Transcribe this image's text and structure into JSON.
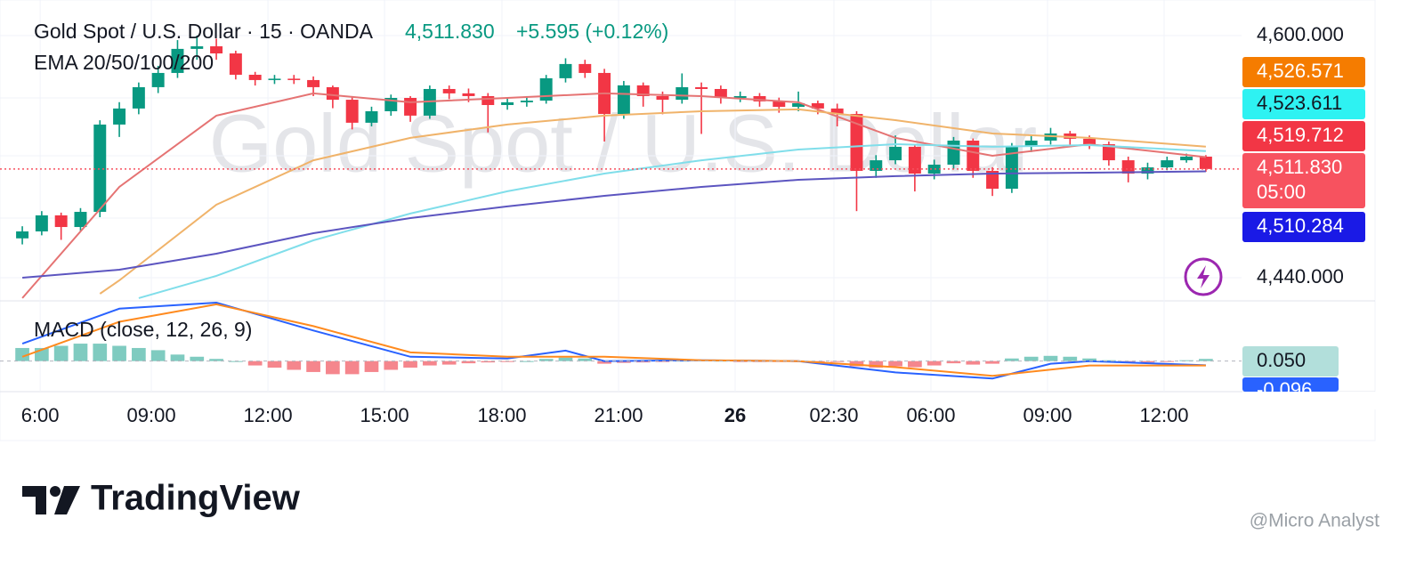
{
  "chart_data": {
    "type": "candlestick",
    "title": "Gold Spot / U.S. Dollar · 15 · OANDA",
    "last_price": "4,511.830",
    "change": "+5.595 (+0.12%)",
    "indicator": "EMA 20/50/100/200",
    "watermark": "Gold Spot / U.S. Dollar",
    "up_color": "#089981",
    "down_color": "#f23645",
    "xlim": [
      -1.15,
      62.84
    ],
    "xticks": [
      {
        "value": 0.92,
        "label": "6:00"
      },
      {
        "value": 6.65,
        "label": "09:00"
      },
      {
        "value": 12.66,
        "label": "12:00"
      },
      {
        "value": 18.67,
        "label": "15:00"
      },
      {
        "value": 24.72,
        "label": "18:00"
      },
      {
        "value": 30.73,
        "label": "21:00"
      },
      {
        "value": 36.74,
        "label": "26"
      },
      {
        "value": 41.83,
        "label": "02:30"
      },
      {
        "value": 46.83,
        "label": "06:00"
      },
      {
        "value": 52.84,
        "label": "09:00"
      },
      {
        "value": 58.85,
        "label": "12:00"
      }
    ],
    "ylim": [
      4424.7,
      4623.5
    ],
    "yticks": [
      {
        "value": 4600,
        "label": "4,600.000"
      },
      {
        "value": 4440,
        "label": "4,440.000"
      }
    ],
    "grid": true,
    "candles": [
      [
        4466,
        4474,
        4462,
        4470.6
      ],
      [
        4470.6,
        4484,
        4468,
        4481.2
      ],
      [
        4481.2,
        4483,
        4465,
        4473.5
      ],
      [
        4473.5,
        4486,
        4471,
        4483.5
      ],
      [
        4483.5,
        4544,
        4480,
        4541.2
      ],
      [
        4541.2,
        4556,
        4533,
        4551.8
      ],
      [
        4551.8,
        4569,
        4548,
        4565.9
      ],
      [
        4565.9,
        4580,
        4562,
        4575.3
      ],
      [
        4575.3,
        4597,
        4572,
        4591.2
      ],
      [
        4591.2,
        4600,
        4584,
        4592.9
      ],
      [
        4592.9,
        4598,
        4584,
        4588.2
      ],
      [
        4588.2,
        4590,
        4571,
        4574.1
      ],
      [
        4574.1,
        4576,
        4567,
        4570.6
      ],
      [
        4570.6,
        4574,
        4568,
        4571.5
      ],
      [
        4571.5,
        4574,
        4568,
        4570.6
      ],
      [
        4570.6,
        4573,
        4560,
        4565.9
      ],
      [
        4565.9,
        4567,
        4552,
        4557.6
      ],
      [
        4557.6,
        4560,
        4538,
        4542.4
      ],
      [
        4542.4,
        4553,
        4540,
        4550.0
      ],
      [
        4550.0,
        4561,
        4547,
        4558.8
      ],
      [
        4558.8,
        4560,
        4543,
        4547.1
      ],
      [
        4547.1,
        4567,
        4545,
        4564.7
      ],
      [
        4564.7,
        4567,
        4558,
        4561.8
      ],
      [
        4561.8,
        4565,
        4556,
        4560.0
      ],
      [
        4560.0,
        4562,
        4536,
        4554.1
      ],
      [
        4554.1,
        4559,
        4551,
        4555.9
      ],
      [
        4555.9,
        4560,
        4553,
        4557.0
      ],
      [
        4557.0,
        4574,
        4555,
        4571.8
      ],
      [
        4571.8,
        4585,
        4569,
        4581.2
      ],
      [
        4581.2,
        4584,
        4572,
        4575.3
      ],
      [
        4575.3,
        4578,
        4530,
        4548.2
      ],
      [
        4548.2,
        4570,
        4545,
        4567.1
      ],
      [
        4567.1,
        4569,
        4553,
        4560.0
      ],
      [
        4560.0,
        4563,
        4548,
        4557.6
      ],
      [
        4557.6,
        4575,
        4555,
        4565.9
      ],
      [
        4565.9,
        4569,
        4535,
        4564.7
      ],
      [
        4564.7,
        4567,
        4555,
        4558.8
      ],
      [
        4558.8,
        4563,
        4556,
        4560.0
      ],
      [
        4560.0,
        4562,
        4553,
        4556.5
      ],
      [
        4556.5,
        4559,
        4549,
        4552.9
      ],
      [
        4552.9,
        4563,
        4550,
        4555.3
      ],
      [
        4555.3,
        4557,
        4548,
        4551.8
      ],
      [
        4551.8,
        4555,
        4540,
        4548.2
      ],
      [
        4548.2,
        4550,
        4484,
        4510.6
      ],
      [
        4510.6,
        4521,
        4506,
        4517.6
      ],
      [
        4517.6,
        4534,
        4515,
        4526.5
      ],
      [
        4526.5,
        4528,
        4497,
        4508.8
      ],
      [
        4508.8,
        4518,
        4505,
        4514.7
      ],
      [
        4514.7,
        4533,
        4512,
        4530.6
      ],
      [
        4530.6,
        4532,
        4506,
        4510.6
      ],
      [
        4510.6,
        4513,
        4494,
        4498.8
      ],
      [
        4498.8,
        4529,
        4496,
        4526.5
      ],
      [
        4526.5,
        4534,
        4523,
        4530.6
      ],
      [
        4530.6,
        4539,
        4528,
        4535.3
      ],
      [
        4535.3,
        4537,
        4527,
        4531.8
      ],
      [
        4531.8,
        4534,
        4525,
        4528.2
      ],
      [
        4528.2,
        4530,
        4514,
        4517.6
      ],
      [
        4517.6,
        4520,
        4503,
        4508.8
      ],
      [
        4508.8,
        4516,
        4505,
        4512.9
      ],
      [
        4512.9,
        4520,
        4511,
        4517.6
      ],
      [
        4517.6,
        4522,
        4516,
        4520.0
      ],
      [
        4520.0,
        4521,
        4510,
        4511.83
      ]
    ],
    "series": [
      {
        "color": "#e57373",
        "x": [
          0,
          5,
          10,
          15,
          20,
          25,
          30,
          35,
          40,
          45,
          50,
          55,
          61
        ],
        "values": [
          4426.5,
          4500.0,
          4547.1,
          4561.8,
          4555.9,
          4558.8,
          4561.8,
          4560.0,
          4555.9,
          4532.4,
          4520.6,
          4528.2,
          4519.71
        ]
      },
      {
        "color": "#f0b36a",
        "x": [
          4,
          5,
          10,
          15,
          20,
          25,
          30,
          35,
          40,
          45,
          50,
          55,
          61
        ],
        "values": [
          4429.4,
          4438.2,
          4488.2,
          4517.6,
          4532.4,
          4541.2,
          4547.1,
          4550.0,
          4551.2,
          4544.1,
          4535.3,
          4532.4,
          4526.57
        ]
      },
      {
        "color": "#80deea",
        "x": [
          6,
          10,
          15,
          20,
          25,
          30,
          35,
          40,
          45,
          50,
          55,
          61
        ],
        "values": [
          4426.5,
          4441.2,
          4464.7,
          4482.4,
          4497.1,
          4508.8,
          4517.6,
          4524.7,
          4528.2,
          4526.5,
          4527.6,
          4523.61
        ]
      },
      {
        "color": "#5c55c0",
        "x": [
          0,
          5,
          10,
          15,
          20,
          25,
          30,
          35,
          40,
          45,
          50,
          55,
          61
        ],
        "values": [
          4440.0,
          4445.3,
          4455.9,
          4469.4,
          4479.4,
          4487.1,
          4494.1,
          4500.0,
          4504.7,
          4507.1,
          4508.8,
          4509.4,
          4510.28
        ]
      }
    ],
    "price_labels": [
      {
        "value": 4526.571,
        "label": "4,526.571",
        "color": "#f57c00",
        "text_color": "#ffffff"
      },
      {
        "value": 4523.611,
        "label": "4,523.611",
        "color": "#2ef2f2",
        "text_color": "#131722"
      },
      {
        "value": 4519.712,
        "label": "4,519.712",
        "color": "#f23645",
        "text_color": "#ffffff"
      },
      {
        "value": 4511.83,
        "label": "4,511.830",
        "color": "#f7525f",
        "text_color": "#ffffff"
      },
      {
        "value": 4510.284,
        "label": "4,510.284",
        "color": "#1a1ae6",
        "text_color": "#ffffff"
      }
    ],
    "countdown": "05:00",
    "macd": {
      "title": "MACD (close, 12, 26, 9)",
      "ylim": [
        -0.7,
        1.38
      ],
      "histogram": [
        0.3,
        0.3,
        0.35,
        0.4,
        0.4,
        0.35,
        0.3,
        0.25,
        0.15,
        0.1,
        0.05,
        0.0,
        -0.1,
        -0.15,
        -0.2,
        -0.25,
        -0.3,
        -0.3,
        -0.25,
        -0.2,
        -0.15,
        -0.1,
        -0.08,
        -0.05,
        -0.03,
        -0.02,
        0.0,
        0.05,
        0.08,
        0.06,
        -0.06,
        -0.04,
        -0.03,
        -0.02,
        0.01,
        0.02,
        0.01,
        -0.01,
        -0.01,
        -0.02,
        -0.02,
        -0.01,
        -0.01,
        -0.12,
        -0.15,
        -0.12,
        -0.14,
        -0.1,
        -0.05,
        -0.08,
        -0.06,
        0.06,
        0.1,
        0.12,
        0.1,
        0.06,
        0.02,
        -0.04,
        -0.03,
        -0.02,
        0.02,
        0.05
      ],
      "up_color": "#7fcbc0",
      "down_color": "#f5868d",
      "series": [
        {
          "color": "#2962ff",
          "x": [
            0,
            5,
            10,
            15,
            20,
            25,
            28,
            30,
            35,
            40,
            45,
            50,
            53,
            55,
            61
          ],
          "values": [
            0.4,
            1.2,
            1.34,
            0.7,
            0.1,
            0.06,
            0.24,
            0,
            0.02,
            0,
            -0.26,
            -0.4,
            -0.06,
            0,
            -0.096
          ]
        },
        {
          "color": "#ff8a1e",
          "x": [
            0,
            5,
            10,
            15,
            20,
            25,
            30,
            35,
            40,
            45,
            50,
            55,
            61
          ],
          "values": [
            0.1,
            0.9,
            1.3,
            0.8,
            0.2,
            0.1,
            0.1,
            0.02,
            0,
            -0.14,
            -0.34,
            -0.1,
            -0.1
          ]
        }
      ],
      "labels": [
        {
          "value": 0.05,
          "label": "0.050",
          "color": "#b2dfdb",
          "text_color": "#131722"
        },
        {
          "value": -0.096,
          "label": "-0.096",
          "color": "#2962ff",
          "text_color": "#ffffff"
        }
      ]
    },
    "brand": "TradingView",
    "credit": "@Micro Analyst"
  }
}
